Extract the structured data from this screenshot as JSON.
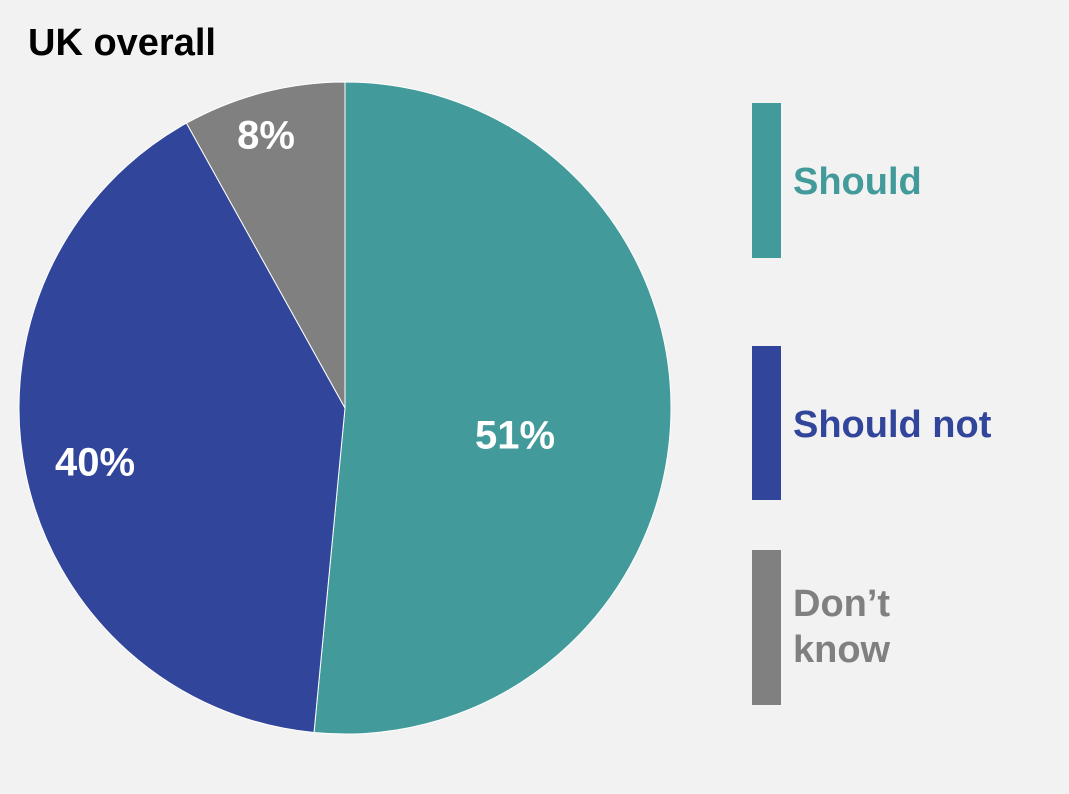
{
  "chart_data": {
    "type": "pie",
    "title": "UK overall",
    "slices": [
      {
        "name": "Should",
        "value": 51,
        "label": "51%",
        "color": "#429a9a"
      },
      {
        "name": "Should not",
        "value": 40,
        "label": "40%",
        "color": "#31459b"
      },
      {
        "name": "Don’t know",
        "value": 8,
        "label": "8%",
        "color": "#808080"
      }
    ],
    "legend_placement": "right"
  }
}
